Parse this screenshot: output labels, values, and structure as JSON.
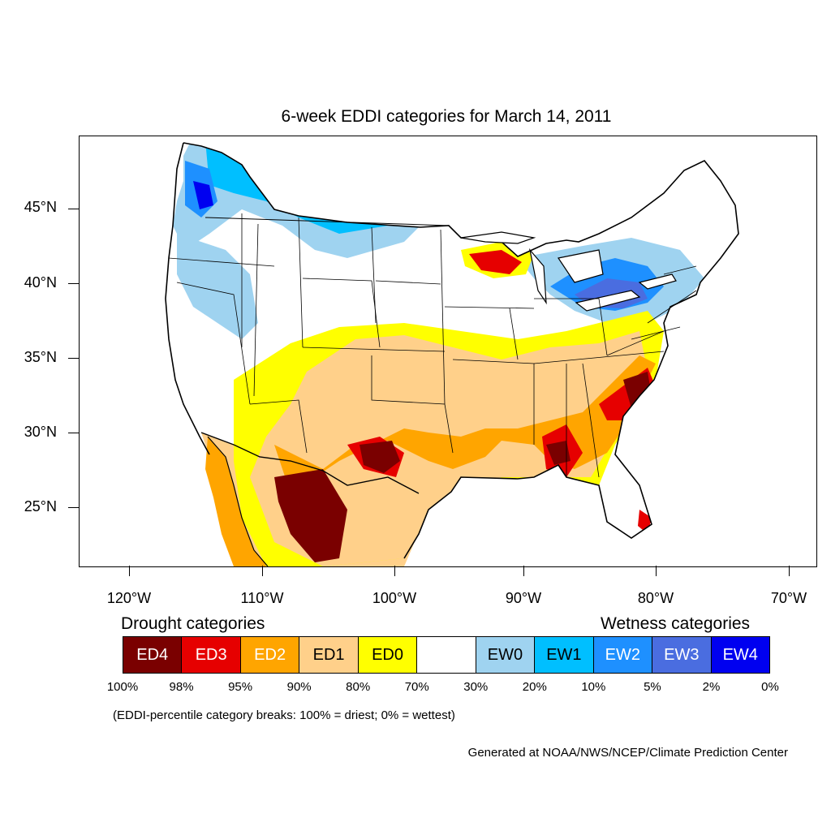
{
  "title": "6-week EDDI categories for March 14, 2011",
  "axes": {
    "lat_labels": [
      "45°N",
      "40°N",
      "35°N",
      "30°N",
      "25°N"
    ],
    "lon_labels": [
      "120°W",
      "110°W",
      "100°W",
      "90°W",
      "80°W",
      "70°W"
    ]
  },
  "legend": {
    "drought_heading": "Drought categories",
    "wetness_heading": "Wetness categories",
    "categories": [
      {
        "label": "ED4",
        "color": "#7a0000",
        "text_color": "#ffffff"
      },
      {
        "label": "ED3",
        "color": "#e60000",
        "text_color": "#ffffff"
      },
      {
        "label": "ED2",
        "color": "#ffa500",
        "text_color": "#ffffff"
      },
      {
        "label": "ED1",
        "color": "#ffd08a",
        "text_color": "#000000"
      },
      {
        "label": "ED0",
        "color": "#ffff00",
        "text_color": "#000000"
      },
      {
        "label": "",
        "color": "#ffffff",
        "text_color": "#000000"
      },
      {
        "label": "EW0",
        "color": "#9fd3f0",
        "text_color": "#000000"
      },
      {
        "label": "EW1",
        "color": "#00bfff",
        "text_color": "#000000"
      },
      {
        "label": "EW2",
        "color": "#1e90ff",
        "text_color": "#ffffff"
      },
      {
        "label": "EW3",
        "color": "#4a6de0",
        "text_color": "#ffffff"
      },
      {
        "label": "EW4",
        "color": "#0000f0",
        "text_color": "#ffffff"
      }
    ],
    "breaks": [
      "100%",
      "98%",
      "95%",
      "90%",
      "80%",
      "70%",
      "30%",
      "20%",
      "10%",
      "5%",
      "2%",
      "0%"
    ]
  },
  "note": "(EDDI-percentile category breaks: 100% = driest; 0% = wettest)",
  "credit": "Generated at NOAA/NWS/NCEP/Climate Prediction Center"
}
